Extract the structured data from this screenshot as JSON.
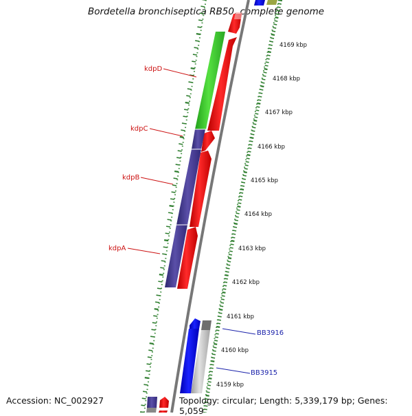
{
  "map": {
    "title": "Bordetella bronchiseptica RB50, complete genome",
    "accession": "Accession: NC_002927",
    "summary": "Topology: circular; Length: 5,339,179 bp; Genes: 5,059"
  },
  "colors": {
    "backbone": "#888888",
    "dots": "#3c8c3c",
    "kdp_red": "#ff1a1a",
    "kdp_green": "#44d434",
    "kdp_purple": "#4a4090",
    "blue_gene": "#0d12ee",
    "grey_gene": "#bbbbbb",
    "label_red": "#cc1111",
    "label_blue": "#1a22aa"
  },
  "ticks": [
    {
      "label": "4169 kbp"
    },
    {
      "label": "4168 kbp"
    },
    {
      "label": "4167 kbp"
    },
    {
      "label": "4166 kbp"
    },
    {
      "label": "4165 kbp"
    },
    {
      "label": "4164 kbp"
    },
    {
      "label": "4163 kbp"
    },
    {
      "label": "4162 kbp"
    },
    {
      "label": "4161 kbp"
    },
    {
      "label": "4160 kbp"
    },
    {
      "label": "4159 kbp"
    }
  ],
  "gene_labels": [
    {
      "text": "kdpD"
    },
    {
      "text": "kdpC"
    },
    {
      "text": "kdpB"
    },
    {
      "text": "kdpA"
    },
    {
      "text": "BB3916"
    },
    {
      "text": "BB3915"
    }
  ]
}
